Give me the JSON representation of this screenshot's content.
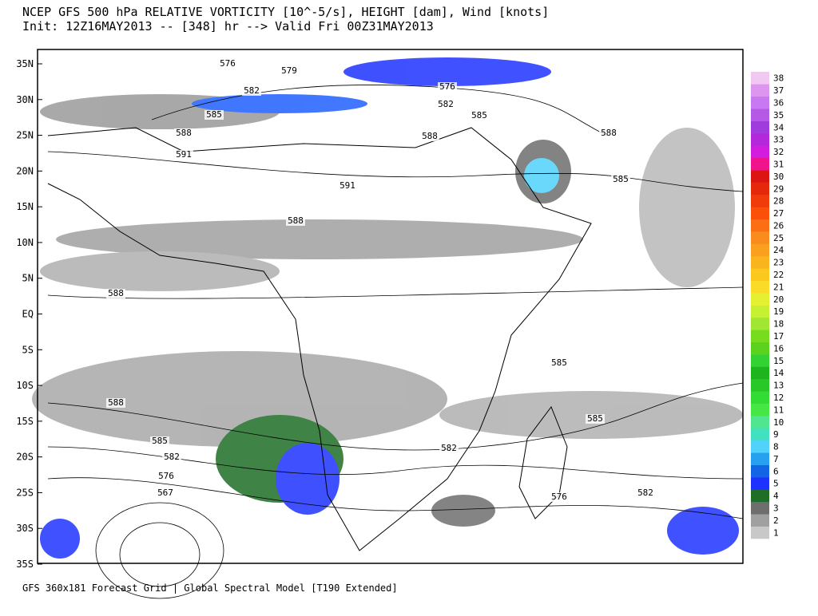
{
  "header": {
    "line1": "NCEP GFS 500 hPa RELATIVE VORTICITY [10^-5/s], HEIGHT [dam], Wind [knots]",
    "line2": "Init: 12Z16MAY2013 -- [348] hr --> Valid Fri 00Z31MAY2013"
  },
  "map": {
    "lat_labels": [
      "35N",
      "30N",
      "25N",
      "20N",
      "15N",
      "10N",
      "5N",
      "EQ",
      "5S",
      "10S",
      "15S",
      "20S",
      "25S",
      "30S",
      "35S"
    ],
    "contour_labels": [
      "576",
      "579",
      "582",
      "585",
      "588",
      "591",
      "591",
      "588",
      "576",
      "582",
      "585",
      "588",
      "588",
      "585",
      "588",
      "585",
      "585",
      "588",
      "585",
      "582",
      "576",
      "567",
      "582",
      "576",
      "582"
    ]
  },
  "colorbar": {
    "levels": [
      1,
      2,
      3,
      4,
      5,
      6,
      7,
      8,
      9,
      10,
      11,
      12,
      13,
      14,
      15,
      16,
      17,
      18,
      19,
      20,
      21,
      22,
      23,
      24,
      25,
      26,
      27,
      28,
      29,
      30,
      31,
      32,
      33,
      34,
      35,
      36,
      37,
      38
    ],
    "colors": [
      "#c8c8c8",
      "#a0a0a0",
      "#6e6e6e",
      "#1e6e28",
      "#1e32ff",
      "#1464e6",
      "#28a0f0",
      "#50d2fa",
      "#40e0c0",
      "#50e690",
      "#46e646",
      "#32dc32",
      "#28c828",
      "#1eb41e",
      "#32d232",
      "#5ad21e",
      "#78dc1e",
      "#a0e632",
      "#c8f032",
      "#e6f032",
      "#fadc28",
      "#fac81e",
      "#fab41e",
      "#faa01e",
      "#fa8c1e",
      "#fa6e14",
      "#fa500a",
      "#f03c0a",
      "#e6280a",
      "#dc1414",
      "#f0148c",
      "#d21edc",
      "#b428dc",
      "#a03cdc",
      "#b45ae6",
      "#c878f0",
      "#dc96f0",
      "#f0c8f0"
    ]
  },
  "footer": "GFS 360x181 Forecast Grid | Global Spectral Model [T190 Extended]"
}
